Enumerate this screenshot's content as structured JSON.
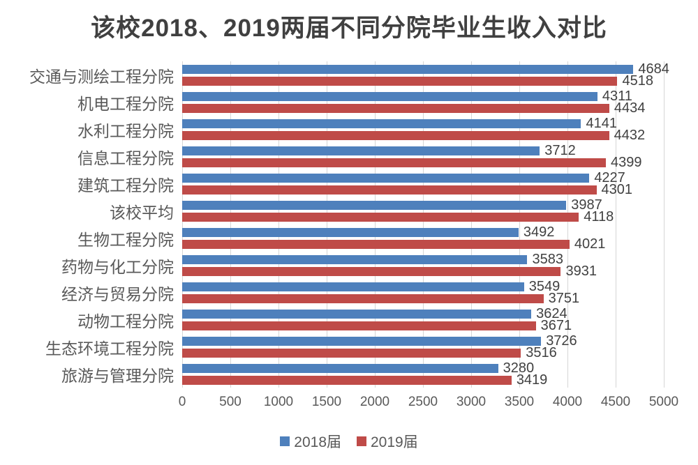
{
  "title": "该校2018、2019两届不同分院毕业生收入对比",
  "colors": {
    "series_2018": "#4E80BC",
    "series_2019": "#BF4B48",
    "gridline": "#D6D6D6",
    "title_text": "#404040",
    "axis_text": "#595959",
    "value_text": "#404040",
    "background": "#FFFFFF"
  },
  "chart_data": {
    "type": "bar",
    "orientation": "horizontal",
    "title": "该校2018、2019两届不同分院毕业生收入对比",
    "categories": [
      "交通与测绘工程分院",
      "机电工程分院",
      "水利工程分院",
      "信息工程分院",
      "建筑工程分院",
      "该校平均",
      "生物工程分院",
      "药物与化工分院",
      "经济与贸易分院",
      "动物工程分院",
      "生态环境工程分院",
      "旅游与管理分院"
    ],
    "series": [
      {
        "name": "2018届",
        "color": "#4E80BC",
        "values": [
          4684,
          4311,
          4141,
          3712,
          4227,
          3987,
          3492,
          3583,
          3549,
          3624,
          3726,
          3280
        ]
      },
      {
        "name": "2019届",
        "color": "#BF4B48",
        "values": [
          4518,
          4434,
          4432,
          4399,
          4301,
          4118,
          4021,
          3931,
          3751,
          3671,
          3516,
          3419
        ]
      }
    ],
    "xlim": [
      0,
      5000
    ],
    "x_ticks": [
      0,
      500,
      1000,
      1500,
      2000,
      2500,
      3000,
      3500,
      4000,
      4500,
      5000
    ],
    "grid": "vertical",
    "legend_position": "bottom",
    "data_labels": true
  }
}
